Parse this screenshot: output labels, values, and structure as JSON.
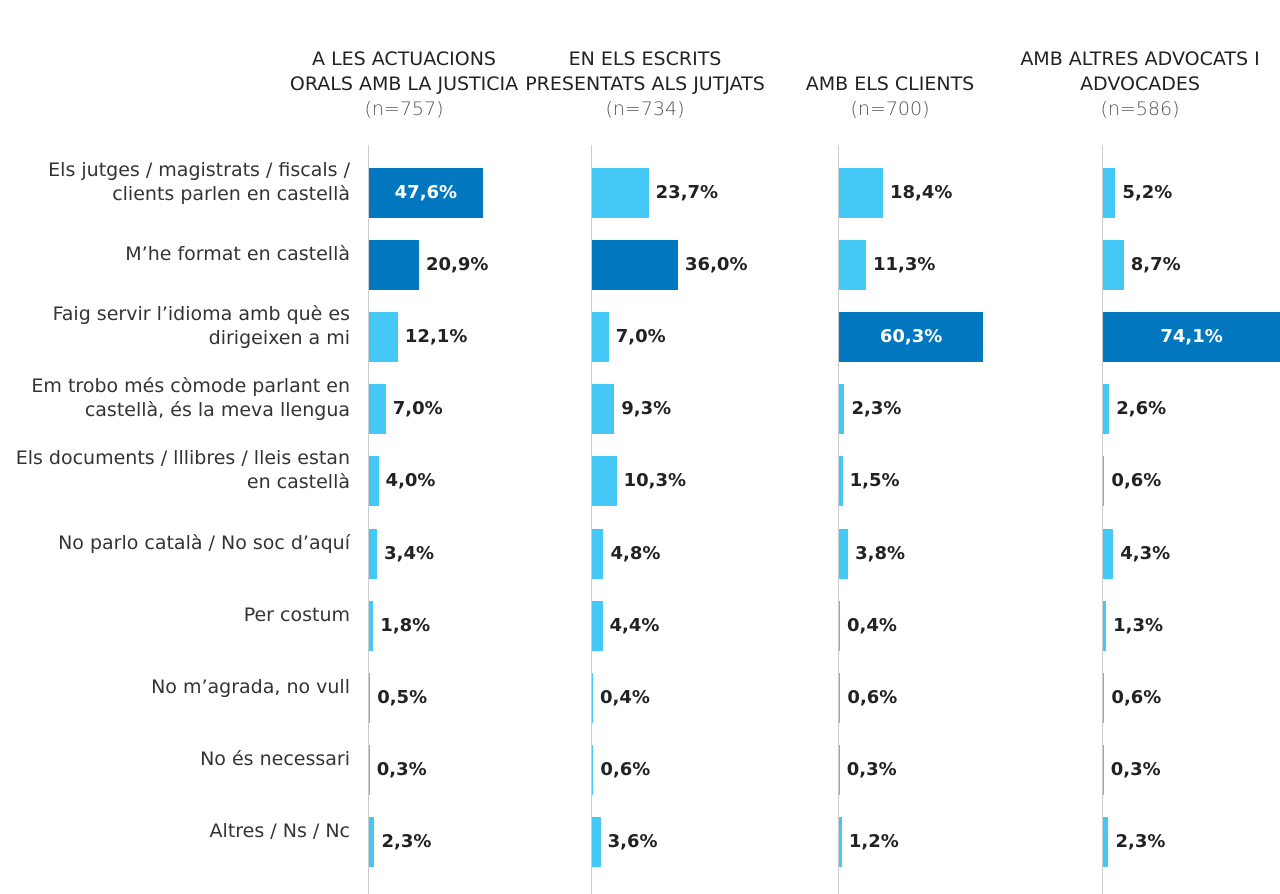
{
  "chart_data": {
    "type": "bar",
    "categories": [
      "Els jutges / magistrats / fiscals / clients parlen en castellà",
      "M’he format en castellà",
      "Faig servir l’idioma amb què es dirigeixen a mi",
      "Em trobo més còmode parlant en castellà, és la meva llengua",
      "Els documents / lllibres / lleis estan en castellà",
      "No parlo català / No soc d’aquí",
      "Per costum",
      "No m’agrada, no vull",
      "No és necessari",
      "Altres / Ns / Nc"
    ],
    "series": [
      {
        "name": "A LES ACTUACIONS ORALS AMB LA JUSTICIA",
        "subtitle": "(n=757)",
        "colors": [
          "#0077be",
          "#0077be",
          "#44c8f5",
          "#44c8f5",
          "#44c8f5",
          "#44c8f5",
          "#44c8f5",
          "#44c8f5",
          "#44c8f5",
          "#44c8f5"
        ],
        "values": [
          47.6,
          20.9,
          12.1,
          7.0,
          4.0,
          3.4,
          1.8,
          0.5,
          0.3,
          2.3
        ],
        "value_labels": [
          "47,6%",
          "20,9%",
          "12,1%",
          "7,0%",
          "4,0%",
          "3,4%",
          "1,8%",
          "0,5%",
          "0,3%",
          "2,3%"
        ]
      },
      {
        "name": "EN ELS ESCRITS PRESENTATS ALS JUTJATS",
        "subtitle": "(n=734)",
        "colors": [
          "#44c8f5",
          "#0077be",
          "#44c8f5",
          "#44c8f5",
          "#44c8f5",
          "#44c8f5",
          "#44c8f5",
          "#44c8f5",
          "#44c8f5",
          "#44c8f5"
        ],
        "values": [
          23.7,
          36.0,
          7.0,
          9.3,
          10.3,
          4.8,
          4.4,
          0.4,
          0.6,
          3.6
        ],
        "value_labels": [
          "23,7%",
          "36,0%",
          "7,0%",
          "9,3%",
          "10,3%",
          "4,8%",
          "4,4%",
          "0,4%",
          "0,6%",
          "3,6%"
        ]
      },
      {
        "name": "AMB ELS CLIENTS",
        "subtitle": "(n=700)",
        "colors": [
          "#44c8f5",
          "#44c8f5",
          "#0077be",
          "#44c8f5",
          "#44c8f5",
          "#44c8f5",
          "#44c8f5",
          "#44c8f5",
          "#44c8f5",
          "#44c8f5"
        ],
        "values": [
          18.4,
          11.3,
          60.3,
          2.3,
          1.5,
          3.8,
          0.4,
          0.6,
          0.3,
          1.2
        ],
        "value_labels": [
          "18,4%",
          "11,3%",
          "60,3%",
          "2,3%",
          "1,5%",
          "3,8%",
          "0,4%",
          "0,6%",
          "0,3%",
          "1,2%"
        ]
      },
      {
        "name": "AMB ALTRES ADVOCATS I ADVOCADES",
        "subtitle": "(n=586)",
        "colors": [
          "#44c8f5",
          "#44c8f5",
          "#0077be",
          "#44c8f5",
          "#44c8f5",
          "#44c8f5",
          "#44c8f5",
          "#44c8f5",
          "#44c8f5",
          "#44c8f5"
        ],
        "values": [
          5.2,
          8.7,
          74.1,
          2.6,
          0.6,
          4.3,
          1.3,
          0.6,
          0.3,
          2.3
        ],
        "value_labels": [
          "5,2%",
          "8,7%",
          "74,1%",
          "2,6%",
          "0,6%",
          "4,3%",
          "1,3%",
          "0,6%",
          "0,3%",
          "2,3%"
        ]
      }
    ]
  }
}
